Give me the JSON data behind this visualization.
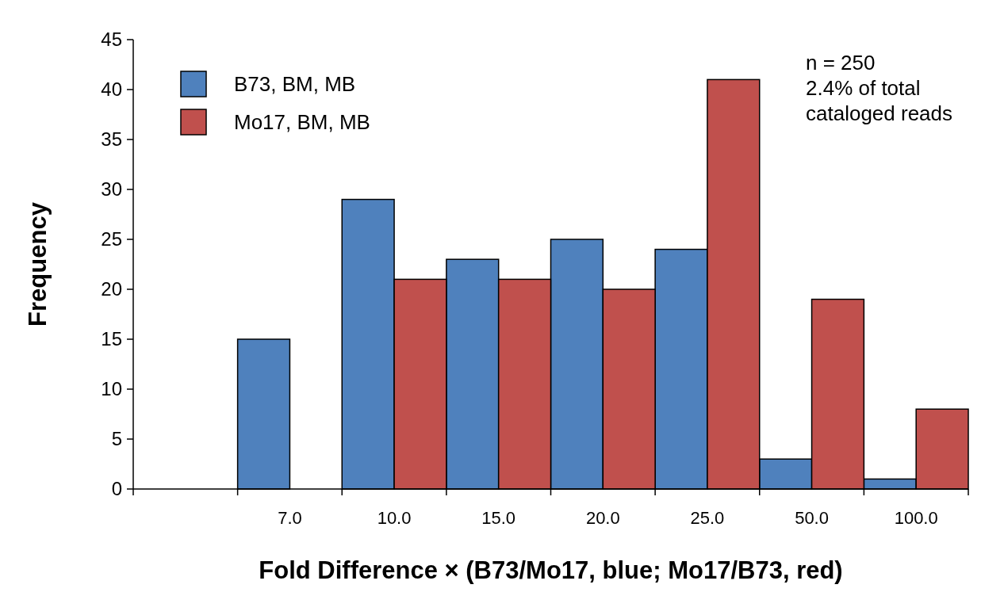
{
  "chart_data": {
    "type": "bar",
    "xlabel": "Fold Difference × (B73/Mo17, blue; Mo17/B73, red)",
    "ylabel": "Frequency",
    "categories": [
      null,
      "7.0",
      "10.0",
      "15.0",
      "20.0",
      "25.0",
      "50.0",
      "100.0"
    ],
    "series": [
      {
        "name": "B73, BM, MB",
        "color": "#4f81bd",
        "values": [
          0,
          15,
          29,
          23,
          25,
          24,
          3,
          1
        ]
      },
      {
        "name": "Mo17, BM, MB",
        "color": "#c0504d",
        "values": [
          0,
          0,
          21,
          21,
          20,
          41,
          19,
          8
        ]
      }
    ],
    "ylim": [
      0,
      45
    ],
    "yticks": [
      0,
      5,
      10,
      15,
      20,
      25,
      30,
      35,
      40,
      45
    ],
    "grid": false,
    "legend": "top left",
    "annotations": [
      "n = 250",
      "2.4% of total",
      "cataloged reads"
    ]
  }
}
